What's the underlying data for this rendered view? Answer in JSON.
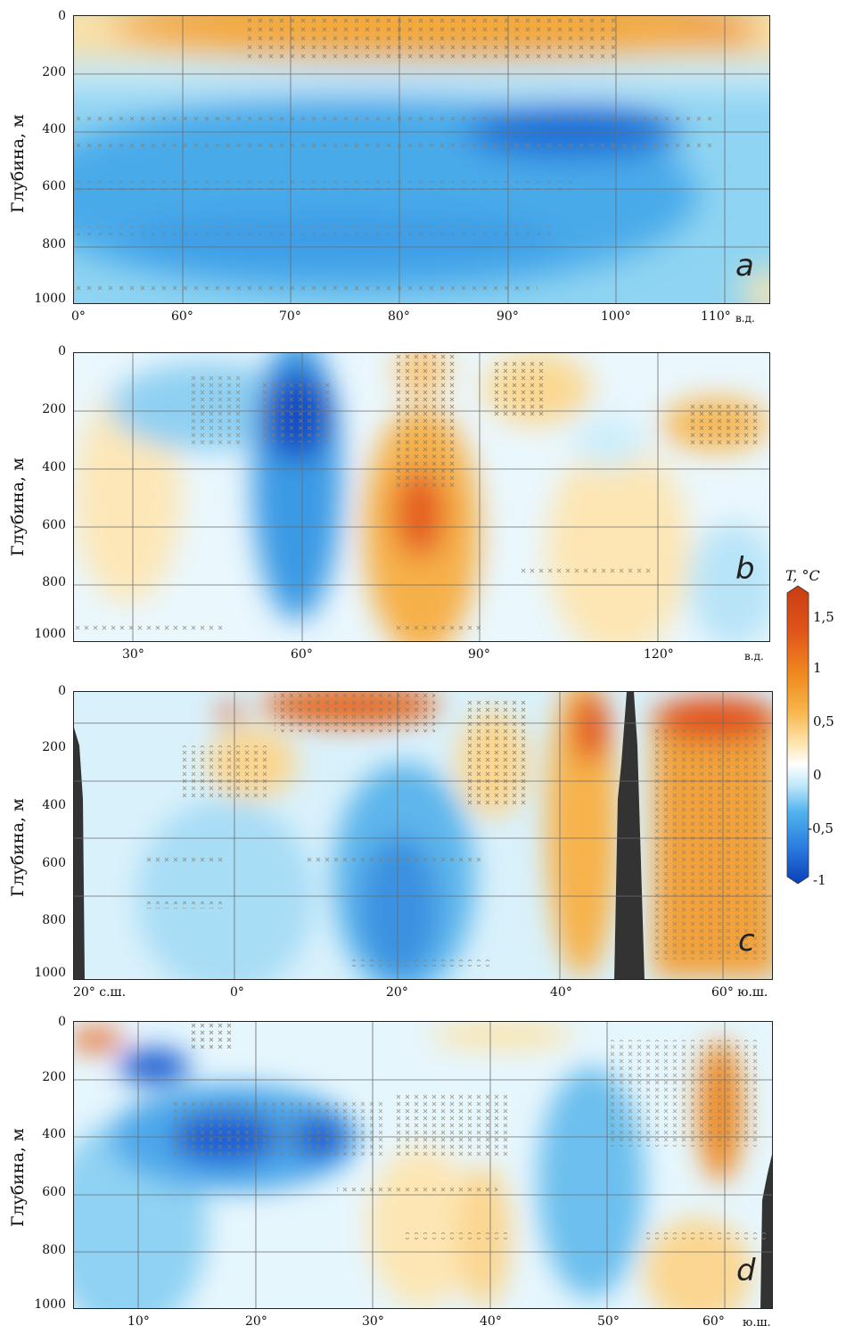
{
  "colorbar": {
    "title": "T, °C",
    "ticks": [
      "1,5",
      "1",
      "0,5",
      "0",
      "-0,5",
      "-1"
    ],
    "colors": [
      "#0b3fb8",
      "#2a7be0",
      "#4fb3ee",
      "#bfe8f8",
      "#ffffff",
      "#fde5b0",
      "#f7b54a",
      "#f08a1e",
      "#e0541a",
      "#c83d12"
    ]
  },
  "chart_data": [
    {
      "type": "heatmap",
      "panel": "a",
      "ylabel": "Глубина, м",
      "yticks": [
        "0",
        "200",
        "400",
        "600",
        "800",
        "1000"
      ],
      "ylim": [
        1000,
        0
      ],
      "xticks": [
        "0°",
        "60°",
        "70°",
        "80°",
        "90°",
        "100°",
        "110°"
      ],
      "xunit": "в.д.",
      "features": [
        {
          "x": 75,
          "depth": 60,
          "value": 0.5
        },
        {
          "x": 90,
          "depth": 380,
          "value": -0.8
        },
        {
          "x": 70,
          "depth": 700,
          "value": -0.6
        }
      ]
    },
    {
      "type": "heatmap",
      "panel": "b",
      "ylabel": "Глубина, м",
      "yticks": [
        "0",
        "200",
        "400",
        "600",
        "800",
        "1000"
      ],
      "ylim": [
        1000,
        0
      ],
      "xticks": [
        "30°",
        "60°",
        "90°",
        "120°"
      ],
      "xunit": "в.д.",
      "features": [
        {
          "x": 58,
          "depth": 220,
          "value": -1.0
        },
        {
          "x": 80,
          "depth": 550,
          "value": 1.0
        },
        {
          "x": 103,
          "depth": 720,
          "value": 0.4
        },
        {
          "x": 28,
          "depth": 450,
          "value": 0.3
        }
      ]
    },
    {
      "type": "heatmap",
      "panel": "c",
      "ylabel": "Глубина, м",
      "yticks": [
        "0",
        "200",
        "400",
        "600",
        "800",
        "1000"
      ],
      "ylim": [
        1000,
        0
      ],
      "xticks": [
        "20° с.ш.",
        "0°",
        "20°",
        "40°",
        "60° ю.ш."
      ],
      "features": [
        {
          "x": 10,
          "depth": 50,
          "value": 1.0
        },
        {
          "x": 20,
          "depth": 600,
          "value": -0.8
        },
        {
          "x": 58,
          "depth": 500,
          "value": 0.7
        },
        {
          "x": 45,
          "depth": 80,
          "value": 1.2
        }
      ]
    },
    {
      "type": "heatmap",
      "panel": "d",
      "ylabel": "Глубина, м",
      "yticks": [
        "0",
        "200",
        "400",
        "600",
        "800",
        "1000"
      ],
      "ylim": [
        1000,
        0
      ],
      "xticks": [
        "10°",
        "20°",
        "30°",
        "40°",
        "50°",
        "60°"
      ],
      "xunit": "ю.ш.",
      "features": [
        {
          "x": 17,
          "depth": 300,
          "value": -0.9
        },
        {
          "x": 25,
          "depth": 280,
          "value": -0.8
        },
        {
          "x": 62,
          "depth": 200,
          "value": 0.9
        },
        {
          "x": 42,
          "depth": 600,
          "value": 0.3
        }
      ]
    }
  ]
}
